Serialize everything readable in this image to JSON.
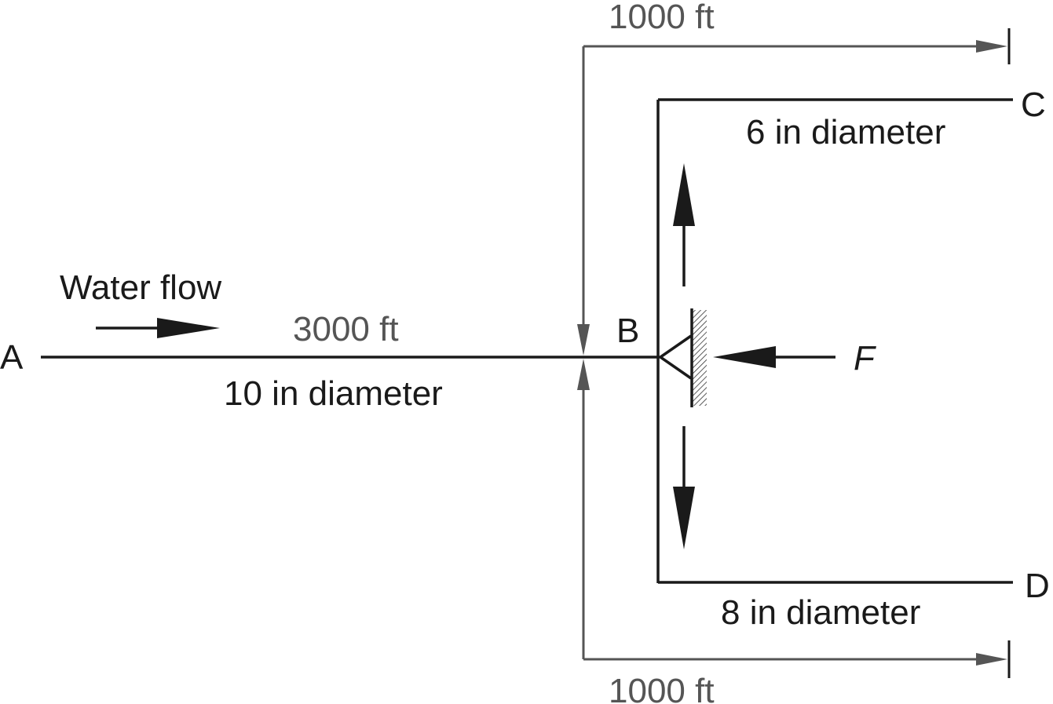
{
  "labels": {
    "point_a": "A",
    "point_b": "B",
    "point_c": "C",
    "point_d": "D",
    "force": "F",
    "flow": "Water flow",
    "pipe_ab_length": "3000 ft",
    "pipe_ab_diameter": "10 in diameter",
    "pipe_bc_length": "1000 ft",
    "pipe_bc_diameter": "6 in diameter",
    "pipe_bd_length": "1000 ft",
    "pipe_bd_diameter": "8 in diameter"
  },
  "colors": {
    "line": "#1a1a1a",
    "dimension": "#555555"
  }
}
